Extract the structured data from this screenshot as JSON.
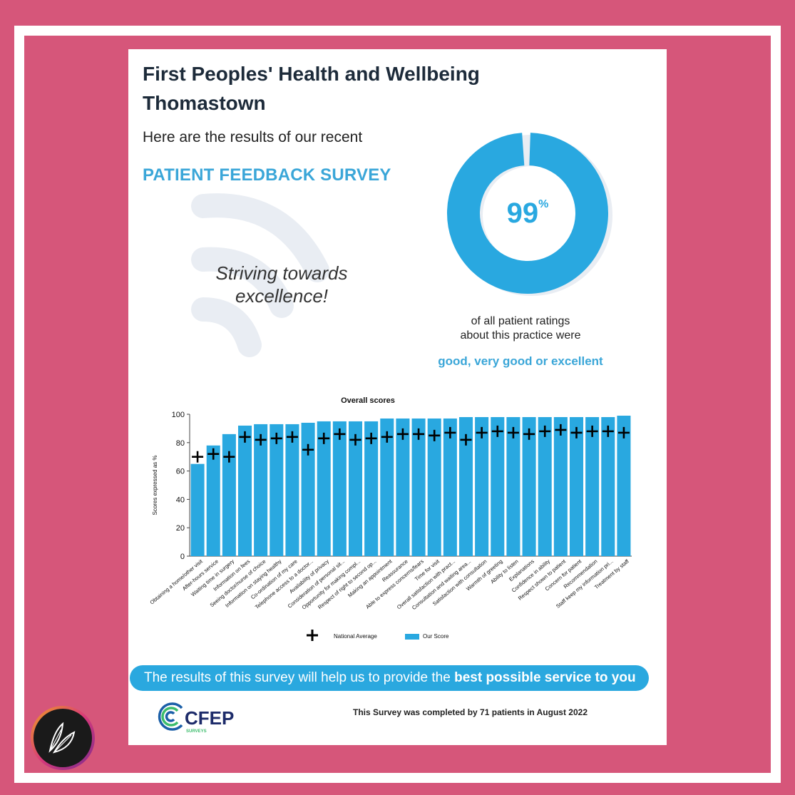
{
  "header": {
    "title_line1": "First Peoples' Health and Wellbeing",
    "title_line2": "Thomastown",
    "intro": "Here are the results of our recent",
    "survey_heading": "PATIENT FEEDBACK SURVEY"
  },
  "slogan": {
    "line1": "Striving towards",
    "line2": "excellence!"
  },
  "donut": {
    "value": 99,
    "value_text": "99",
    "percent_sign": "%",
    "caption_line1": "of all patient ratings",
    "caption_line2": "about this practice were",
    "highlight": "good, very good or excellent",
    "color": "#29a8e0"
  },
  "chart_data": {
    "type": "bar",
    "title": "Overall scores",
    "ylabel": "Scores expressed as %",
    "xlabel": "",
    "ylim": [
      0,
      100
    ],
    "yticks": [
      0,
      20,
      40,
      60,
      80,
      100
    ],
    "categories": [
      "Obtaining a home/other visit",
      "After-hours service",
      "Waiting time in surgery",
      "Information on fees",
      "Seeing doctor/nurse of choice",
      "Information on staying healthy",
      "Co-ordination of my care",
      "Telephone access to a doctor...",
      "Availability of privacy",
      "Consideration of personal sit...",
      "Opportunity for making compl...",
      "Respect of right to second op...",
      "Making an appointment",
      "Reassurance",
      "Able to express concerns/fears",
      "Time for visit",
      "Overall satisfaction with pract...",
      "Consultation and waiting area...",
      "Satisfaction with consultation",
      "Warmth of greeting",
      "Ability to listen",
      "Explanations",
      "Confidence in ability",
      "Respect shown to patient",
      "Concern for patient",
      "Recommendation",
      "Staff keep my information pri...",
      "Treatment by staff"
    ],
    "series": [
      {
        "name": "Our Score",
        "color": "#29a8e0",
        "values": [
          65,
          78,
          86,
          92,
          93,
          93,
          93,
          94,
          95,
          95,
          95,
          95,
          97,
          97,
          97,
          97,
          97,
          98,
          98,
          98,
          98,
          98,
          98,
          98,
          98,
          98,
          98,
          99
        ]
      },
      {
        "name": "National Average",
        "color": "#000000",
        "values": [
          70,
          72,
          70,
          84,
          82,
          83,
          84,
          75,
          83,
          86,
          82,
          83,
          84,
          86,
          86,
          85,
          87,
          82,
          87,
          88,
          87,
          86,
          88,
          89,
          87,
          88,
          88,
          87
        ]
      }
    ],
    "legend": [
      "National Average",
      "Our Score"
    ],
    "legend_position": "bottom",
    "grid": false
  },
  "footer": {
    "banner_regular": "The results of this survey will help us to provide the ",
    "banner_bold": "best possible service to you",
    "logo_text": "CFEP",
    "logo_sub": "SURVEYS",
    "completed": "This Survey was completed by 71 patients in August 2022"
  }
}
